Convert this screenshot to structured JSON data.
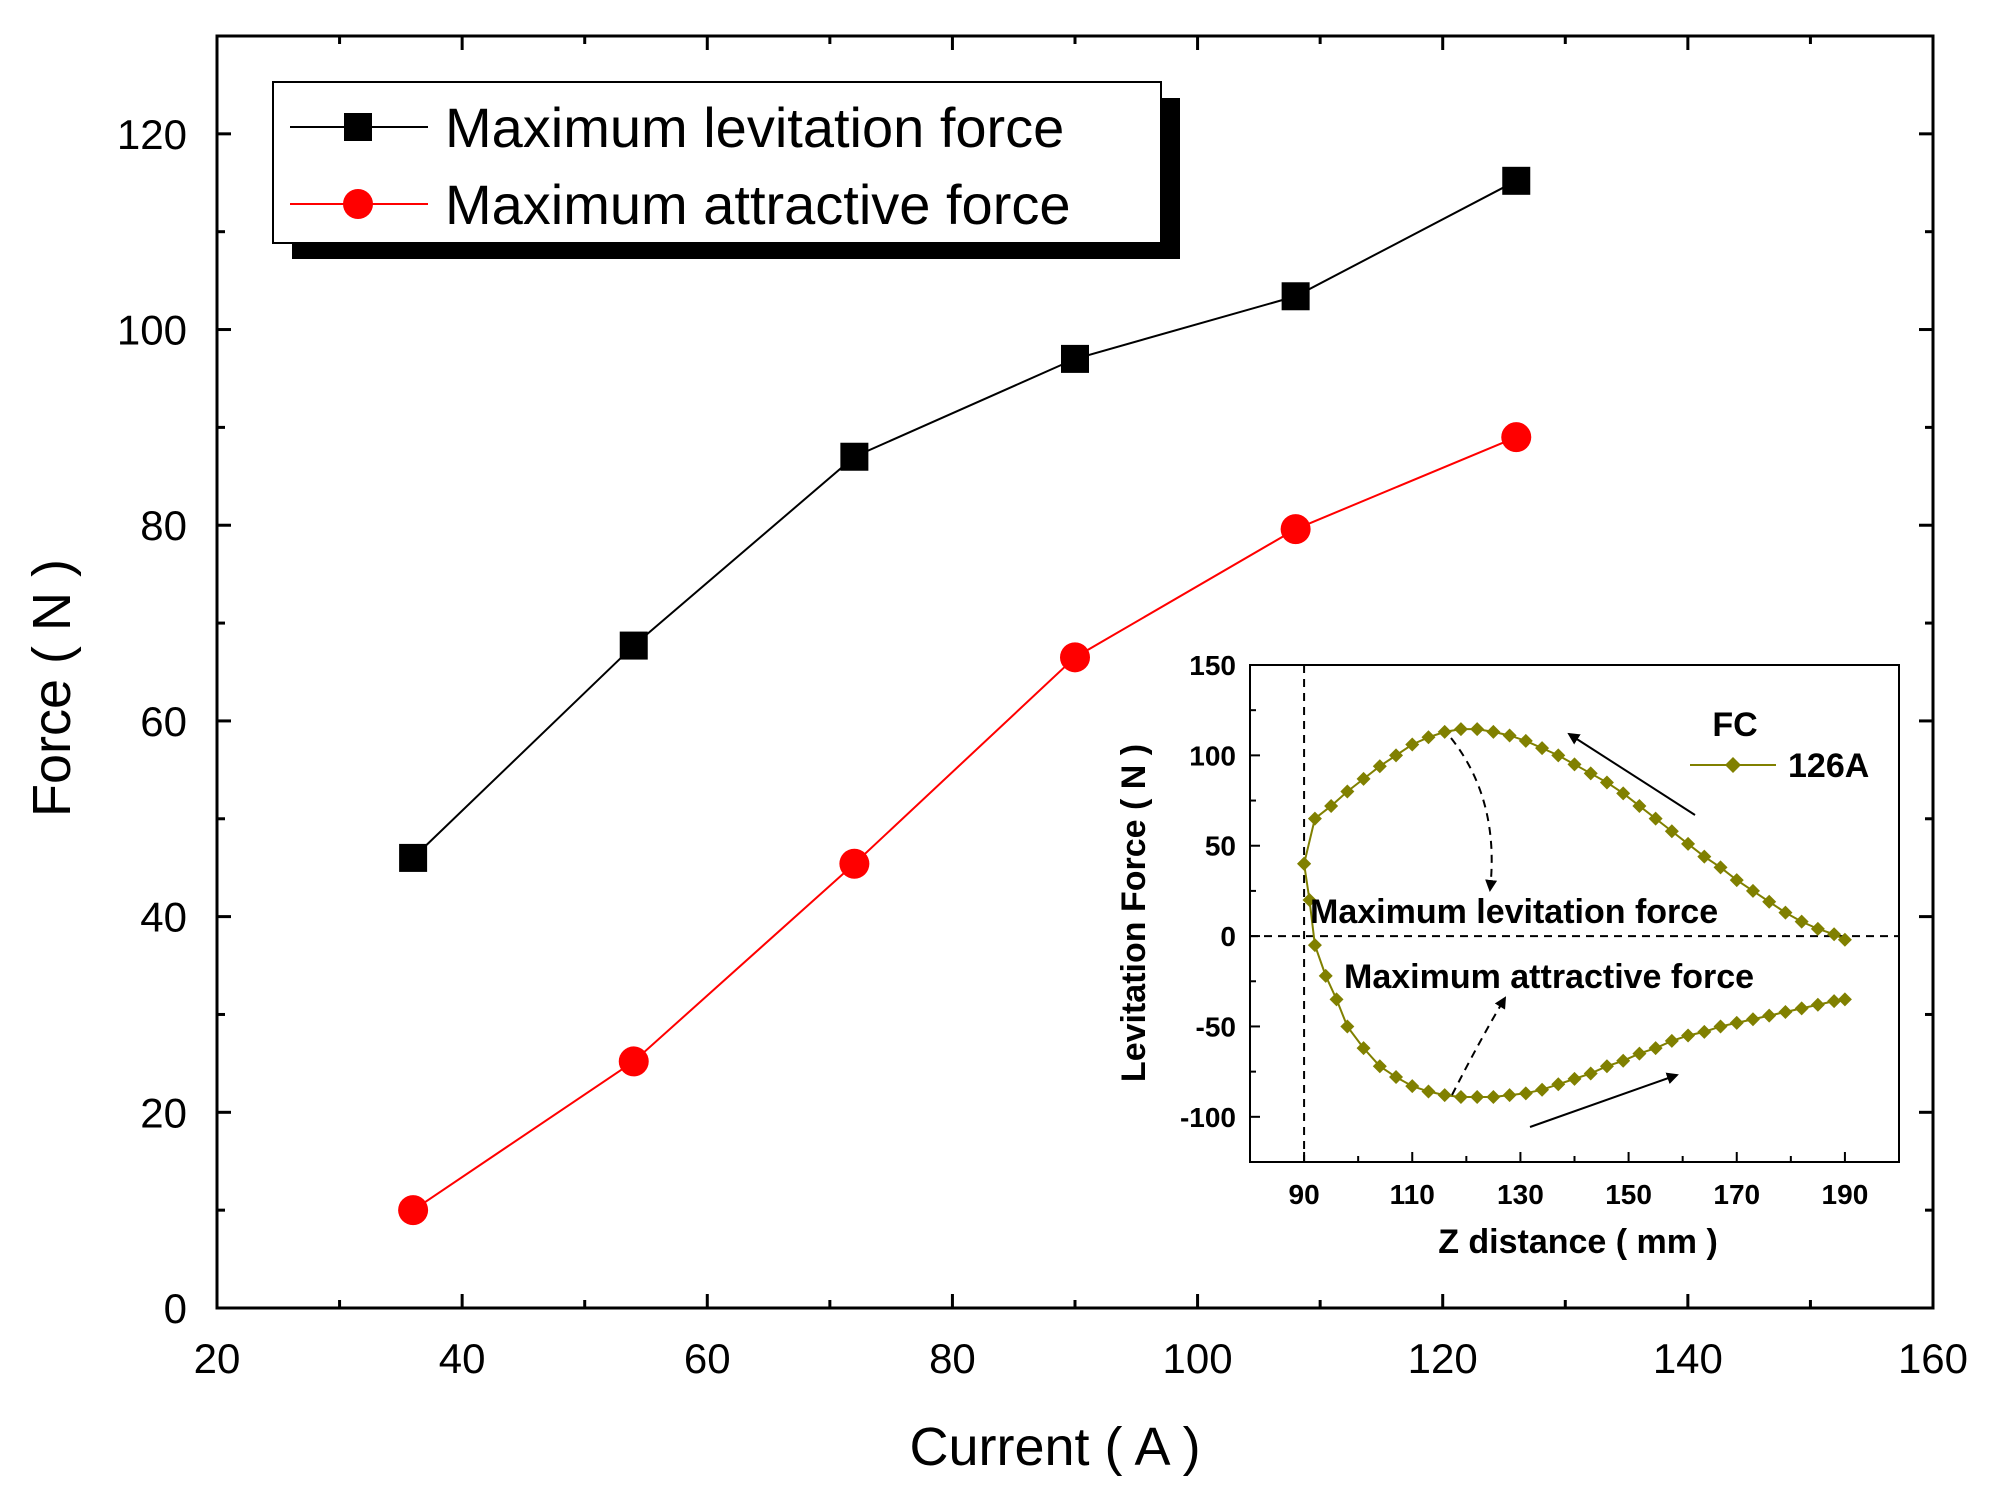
{
  "chart_data": [
    {
      "type": "line",
      "title": "",
      "xlabel": "Current ( A )",
      "ylabel": "Force ( N )",
      "xlim": [
        20,
        160
      ],
      "ylim": [
        0,
        130
      ],
      "xticks": [
        20,
        40,
        60,
        80,
        100,
        120,
        140,
        160
      ],
      "yticks": [
        0,
        20,
        40,
        60,
        80,
        100,
        120
      ],
      "grid": false,
      "legend_position": "top-left",
      "series": [
        {
          "name": "Maximum levitation force",
          "color": "#000000",
          "marker": "square",
          "x": [
            36,
            54,
            72,
            90,
            108,
            126
          ],
          "y": [
            46,
            67.7,
            87,
            97,
            103.4,
            115.2
          ]
        },
        {
          "name": "Maximum attractive force",
          "color": "#ff0000",
          "marker": "circle",
          "x": [
            36,
            54,
            72,
            90,
            108,
            126
          ],
          "y": [
            10,
            25.2,
            45.4,
            66.5,
            79.6,
            89
          ]
        }
      ]
    },
    {
      "type": "line",
      "title": "",
      "xlabel": "Z distance ( mm )",
      "ylabel": "Levitation Force ( N )",
      "xlim": [
        80,
        200
      ],
      "ylim": [
        -125,
        150
      ],
      "xticks": [
        90,
        110,
        130,
        150,
        170,
        190
      ],
      "yticks": [
        -100,
        -50,
        0,
        50,
        100,
        150
      ],
      "grid": false,
      "legend_title": "FC",
      "legend_position": "top-right",
      "reference_lines": {
        "x": 90,
        "y": 0
      },
      "annotations": [
        "Maximum levitation force",
        "Maximum attractive force"
      ],
      "series": [
        {
          "name": "126A",
          "color": "#808000",
          "marker": "diamond",
          "segments": [
            {
              "direction": "approach",
              "x": [
                90,
                92,
                95,
                98,
                101,
                104,
                107,
                110,
                113,
                116,
                119,
                122,
                125,
                128,
                131,
                134,
                137,
                140,
                143,
                146,
                149,
                152,
                155,
                158,
                161,
                164,
                167,
                170,
                173,
                176,
                179,
                182,
                185,
                188,
                190
              ],
              "y": [
                40,
                65,
                72,
                80,
                87,
                94,
                100,
                106,
                110,
                113,
                114.5,
                114.5,
                113,
                111,
                108,
                104,
                100,
                95,
                90,
                85,
                79,
                72,
                65,
                58,
                51,
                44,
                38,
                31,
                25,
                19,
                13,
                8,
                4,
                1,
                -2
              ]
            },
            {
              "direction": "withdraw",
              "x": [
                90,
                91,
                92,
                94,
                96,
                98,
                101,
                104,
                107,
                110,
                113,
                116,
                119,
                122,
                125,
                128,
                131,
                134,
                137,
                140,
                143,
                146,
                149,
                152,
                155,
                158,
                161,
                164,
                167,
                170,
                173,
                176,
                179,
                182,
                185,
                188,
                190
              ],
              "y": [
                40,
                20,
                -5,
                -22,
                -35,
                -50,
                -62,
                -72,
                -78,
                -83,
                -86,
                -88,
                -89,
                -89,
                -89,
                -88,
                -87,
                -85,
                -82,
                -79,
                -76,
                -72,
                -69,
                -65,
                -62,
                -58,
                -55,
                -53,
                -50,
                -48,
                -46,
                -44,
                -42,
                -40,
                -38,
                -36,
                -35
              ]
            }
          ]
        }
      ]
    }
  ]
}
